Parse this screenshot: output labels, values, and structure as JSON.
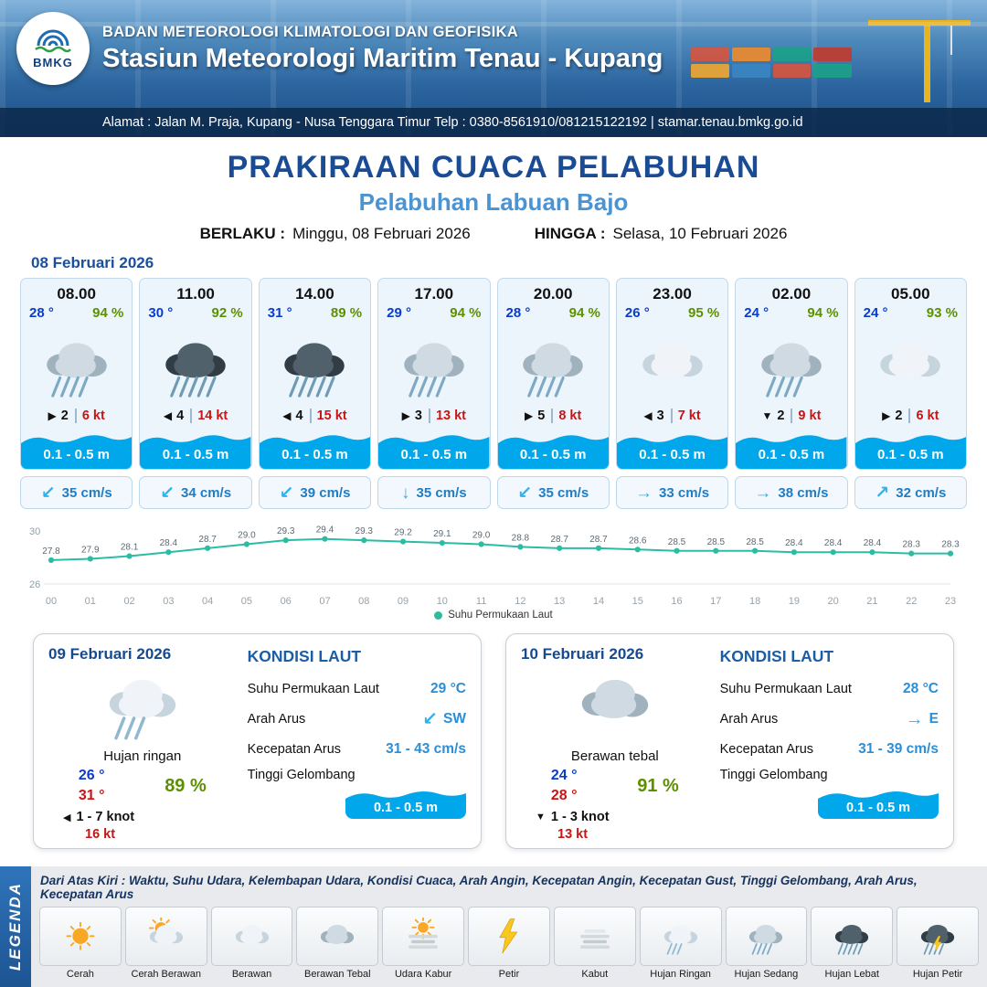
{
  "header": {
    "logo_text": "BMKG",
    "agency": "BADAN METEOROLOGI KLIMATOLOGI DAN GEOFISIKA",
    "station": "Stasiun Meteorologi Maritim Tenau - Kupang",
    "address": "Alamat : Jalan M. Praja, Kupang - Nusa Tenggara Timur Telp : 0380-8561910/081215122192  | stamar.tenau.bmkg.go.id"
  },
  "title": {
    "main": "PRAKIRAAN CUACA PELABUHAN",
    "port": "Pelabuhan Labuan Bajo",
    "berlaku_label": "BERLAKU :",
    "berlaku_value": "Minggu, 08 Februari 2026",
    "hingga_label": "HINGGA :",
    "hingga_value": "Selasa, 10 Februari 2026"
  },
  "day1": {
    "date": "08 Februari 2026",
    "cards": [
      {
        "time": "08.00",
        "temp": "28 °",
        "rh": "94 %",
        "icon": "hujan-sedang",
        "wind_glyph": "▶",
        "wind_val": "2",
        "wind_kt": "6 kt",
        "wave": "0.1 - 0.5 m",
        "cur_glyph": "↙",
        "cur": "35 cm/s"
      },
      {
        "time": "11.00",
        "temp": "30 °",
        "rh": "92 %",
        "icon": "hujan-lebat",
        "wind_glyph": "◀",
        "wind_val": "4",
        "wind_kt": "14 kt",
        "wave": "0.1 - 0.5 m",
        "cur_glyph": "↙",
        "cur": "34 cm/s"
      },
      {
        "time": "14.00",
        "temp": "31 °",
        "rh": "89 %",
        "icon": "hujan-lebat",
        "wind_glyph": "◀",
        "wind_val": "4",
        "wind_kt": "15 kt",
        "wave": "0.1 - 0.5 m",
        "cur_glyph": "↙",
        "cur": "39 cm/s"
      },
      {
        "time": "17.00",
        "temp": "29 °",
        "rh": "94 %",
        "icon": "hujan-sedang",
        "wind_glyph": "▶",
        "wind_val": "3",
        "wind_kt": "13 kt",
        "wave": "0.1 - 0.5 m",
        "cur_glyph": "↓",
        "cur": "35 cm/s"
      },
      {
        "time": "20.00",
        "temp": "28 °",
        "rh": "94 %",
        "icon": "hujan-sedang",
        "wind_glyph": "▶",
        "wind_val": "5",
        "wind_kt": "8 kt",
        "wave": "0.1 - 0.5 m",
        "cur_glyph": "↙",
        "cur": "35 cm/s"
      },
      {
        "time": "23.00",
        "temp": "26 °",
        "rh": "95 %",
        "icon": "berawan",
        "wind_glyph": "◀",
        "wind_val": "3",
        "wind_kt": "7 kt",
        "wave": "0.1 - 0.5 m",
        "cur_glyph": "→",
        "cur": "33 cm/s"
      },
      {
        "time": "02.00",
        "temp": "24 °",
        "rh": "94 %",
        "icon": "hujan-sedang",
        "wind_glyph": "▼",
        "wind_val": "2",
        "wind_kt": "9 kt",
        "wave": "0.1 - 0.5 m",
        "cur_glyph": "→",
        "cur": "38 cm/s"
      },
      {
        "time": "05.00",
        "temp": "24 °",
        "rh": "93 %",
        "icon": "berawan",
        "wind_glyph": "▶",
        "wind_val": "2",
        "wind_kt": "6 kt",
        "wave": "0.1 - 0.5 m",
        "cur_glyph": "↗",
        "cur": "32 cm/s"
      }
    ]
  },
  "chart_data": {
    "type": "line",
    "title": "Suhu Permukaan Laut",
    "series_name": "Suhu Permukaan Laut",
    "x": [
      "00",
      "01",
      "02",
      "03",
      "04",
      "05",
      "06",
      "07",
      "08",
      "09",
      "10",
      "11",
      "12",
      "13",
      "14",
      "15",
      "16",
      "17",
      "18",
      "19",
      "20",
      "21",
      "22",
      "23"
    ],
    "values": [
      27.8,
      27.9,
      28.1,
      28.4,
      28.7,
      29.0,
      29.3,
      29.4,
      29.3,
      29.2,
      29.1,
      29.0,
      28.8,
      28.7,
      28.7,
      28.6,
      28.5,
      28.5,
      28.5,
      28.4,
      28.4,
      28.4,
      28.3,
      28.3
    ],
    "ylim": [
      26,
      30
    ],
    "color": "#2bbda4",
    "grid": false,
    "legend_position": "bottom"
  },
  "days": [
    {
      "date": "09 Februari 2026",
      "icon": "hujan-ringan",
      "cond": "Hujan ringan",
      "tmin": "26 °",
      "tmax": "31 °",
      "rh": "89 %",
      "wind_glyph": "◀",
      "wind_range": "1 - 7 knot",
      "gust": "16 kt",
      "sea": {
        "title": "KONDISI LAUT",
        "sst_label": "Suhu Permukaan Laut",
        "sst": "29 °C",
        "arus_label": "Arah Arus",
        "arus_glyph": "↙",
        "arus_dir": "SW",
        "kec_label": "Kecepatan Arus",
        "kec": "31 - 43 cm/s",
        "gel_label": "Tinggi Gelombang",
        "gel": "0.1 - 0.5 m"
      }
    },
    {
      "date": "10 Februari 2026",
      "icon": "berawan-tebal",
      "cond": "Berawan tebal",
      "tmin": "24 °",
      "tmax": "28 °",
      "rh": "91 %",
      "wind_glyph": "▼",
      "wind_range": "1 - 3 knot",
      "gust": "13 kt",
      "sea": {
        "title": "KONDISI LAUT",
        "sst_label": "Suhu Permukaan Laut",
        "sst": "28 °C",
        "arus_label": "Arah Arus",
        "arus_glyph": "→",
        "arus_dir": "E",
        "kec_label": "Kecepatan Arus",
        "kec": "31 - 39 cm/s",
        "gel_label": "Tinggi Gelombang",
        "gel": "0.1 - 0.5 m"
      }
    }
  ],
  "legend": {
    "title": "LEGENDA",
    "desc": "Dari Atas Kiri : Waktu, Suhu Udara, Kelembapan Udara, Kondisi Cuaca, Arah Angin, Kecepatan Angin, Kecepatan Gust, Tinggi Gelombang, Arah Arus, Kecepatan Arus",
    "items": [
      {
        "icon": "cerah",
        "label": "Cerah"
      },
      {
        "icon": "cerah-berawan",
        "label": "Cerah Berawan"
      },
      {
        "icon": "berawan",
        "label": "Berawan"
      },
      {
        "icon": "berawan-tebal",
        "label": "Berawan Tebal"
      },
      {
        "icon": "udara-kabur",
        "label": "Udara Kabur"
      },
      {
        "icon": "petir",
        "label": "Petir"
      },
      {
        "icon": "kabut",
        "label": "Kabut"
      },
      {
        "icon": "hujan-ringan",
        "label": "Hujan Ringan"
      },
      {
        "icon": "hujan-sedang",
        "label": "Hujan Sedang"
      },
      {
        "icon": "hujan-lebat",
        "label": "Hujan Lebat"
      },
      {
        "icon": "hujan-petir",
        "label": "Hujan Petir"
      }
    ]
  }
}
